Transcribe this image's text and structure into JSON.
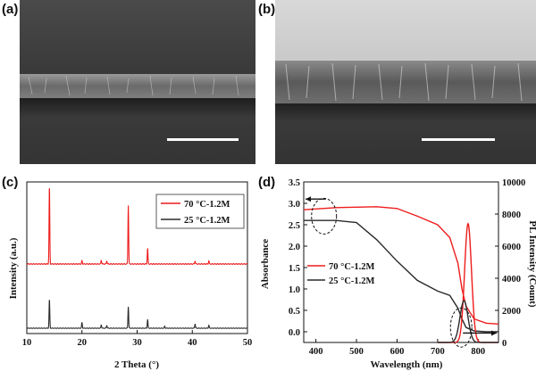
{
  "panels": {
    "a": "(a)",
    "b": "(b)",
    "c": "(c)",
    "d": "(d)"
  },
  "colors": {
    "red": "#ee1c1c",
    "black": "#2a2a2a",
    "scale_bar": "#ffffff"
  },
  "sem_images": [
    {
      "id": "a",
      "description_hidden": true
    },
    {
      "id": "b",
      "description_hidden": true
    }
  ],
  "chart_data": [
    {
      "type": "line",
      "panel": "c",
      "xlabel": "2 Theta (°)",
      "ylabel": "Intensity (a.u.)",
      "xlim": [
        10,
        50
      ],
      "xticks": [
        10,
        20,
        30,
        40,
        50
      ],
      "legend": [
        "70 °C-1.2M",
        "25 °C-1.2M"
      ],
      "legend_position": "top-right",
      "series": [
        {
          "name": "70 °C-1.2M",
          "color": "#ee1c1c",
          "baseline": 0.38,
          "peaks": [
            [
              14.1,
              1.0
            ],
            [
              20.0,
              0.04
            ],
            [
              23.5,
              0.05
            ],
            [
              24.5,
              0.04
            ],
            [
              28.4,
              0.75
            ],
            [
              31.9,
              0.2
            ],
            [
              40.5,
              0.04
            ],
            [
              43.0,
              0.04
            ]
          ]
        },
        {
          "name": "25 °C-1.2M",
          "color": "#2a2a2a",
          "baseline": 0.0,
          "peaks": [
            [
              14.1,
              0.6
            ],
            [
              20.0,
              0.12
            ],
            [
              23.5,
              0.07
            ],
            [
              24.5,
              0.06
            ],
            [
              28.4,
              0.45
            ],
            [
              31.9,
              0.18
            ],
            [
              35.0,
              0.04
            ],
            [
              40.5,
              0.09
            ],
            [
              43.0,
              0.06
            ]
          ]
        }
      ]
    },
    {
      "type": "line",
      "panel": "d",
      "xlabel": "Wavelength (nm)",
      "ylabel": "Absorbance",
      "y2label": "PL Intensity (Count)",
      "xlim": [
        370,
        850
      ],
      "xticks": [
        400,
        500,
        600,
        700,
        800
      ],
      "ylim": [
        -0.25,
        3.5
      ],
      "yticks": [
        "0.0",
        "0.5",
        "1.0",
        "1.5",
        "2.0",
        "2.5",
        "3.0",
        "3.5"
      ],
      "y2lim": [
        0,
        10000
      ],
      "y2ticks": [
        "0",
        "2000",
        "4000",
        "6000",
        "8000",
        "10000"
      ],
      "legend": [
        "70 °C-1.2M",
        "25 °C-1.2M"
      ],
      "legend_position": "bottom-left",
      "absorbance": [
        {
          "name": "70 °C-1.2M",
          "color": "#ee1c1c",
          "x": [
            370,
            450,
            550,
            600,
            650,
            700,
            730,
            750,
            760,
            770,
            790,
            820,
            850
          ],
          "y": [
            2.85,
            2.9,
            2.92,
            2.88,
            2.7,
            2.5,
            2.2,
            1.6,
            1.0,
            0.6,
            0.3,
            0.2,
            0.18
          ]
        },
        {
          "name": "25 °C-1.2M",
          "color": "#2a2a2a",
          "x": [
            370,
            450,
            500,
            550,
            600,
            650,
            700,
            730,
            750,
            760,
            770,
            790,
            820,
            850
          ],
          "y": [
            2.6,
            2.6,
            2.55,
            2.15,
            1.65,
            1.2,
            0.95,
            0.85,
            0.55,
            0.3,
            0.1,
            0.02,
            0.0,
            0.0
          ]
        }
      ],
      "pl": [
        {
          "name": "70 °C-1.2M",
          "color": "#ee1c1c",
          "center": 775,
          "width": 12,
          "peak": 7400
        },
        {
          "name": "25 °C-1.2M",
          "color": "#2a2a2a",
          "center": 765,
          "width": 14,
          "peak": 2600
        }
      ]
    }
  ]
}
